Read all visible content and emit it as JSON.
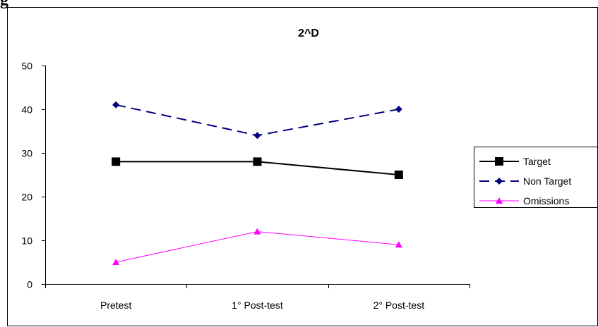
{
  "caption_fragment": "g",
  "chart_data": {
    "type": "line",
    "title": "2^D",
    "categories": [
      "Pretest",
      "1° Post-test",
      "2° Post-test"
    ],
    "ylim": [
      0,
      50
    ],
    "yticks": [
      0,
      10,
      20,
      30,
      40,
      50
    ],
    "grid": false,
    "legend_position": "right",
    "series": [
      {
        "name": "Target",
        "values": [
          28,
          28,
          25
        ],
        "color": "#000000",
        "marker": "square",
        "line_style": "solid"
      },
      {
        "name": "Non Target",
        "values": [
          41,
          34,
          40
        ],
        "color": "#000080",
        "marker": "diamond",
        "line_style": "dashed"
      },
      {
        "name": "Omissions",
        "values": [
          5,
          12,
          9
        ],
        "color": "#ff00ff",
        "marker": "triangle",
        "line_style": "solid"
      }
    ]
  }
}
